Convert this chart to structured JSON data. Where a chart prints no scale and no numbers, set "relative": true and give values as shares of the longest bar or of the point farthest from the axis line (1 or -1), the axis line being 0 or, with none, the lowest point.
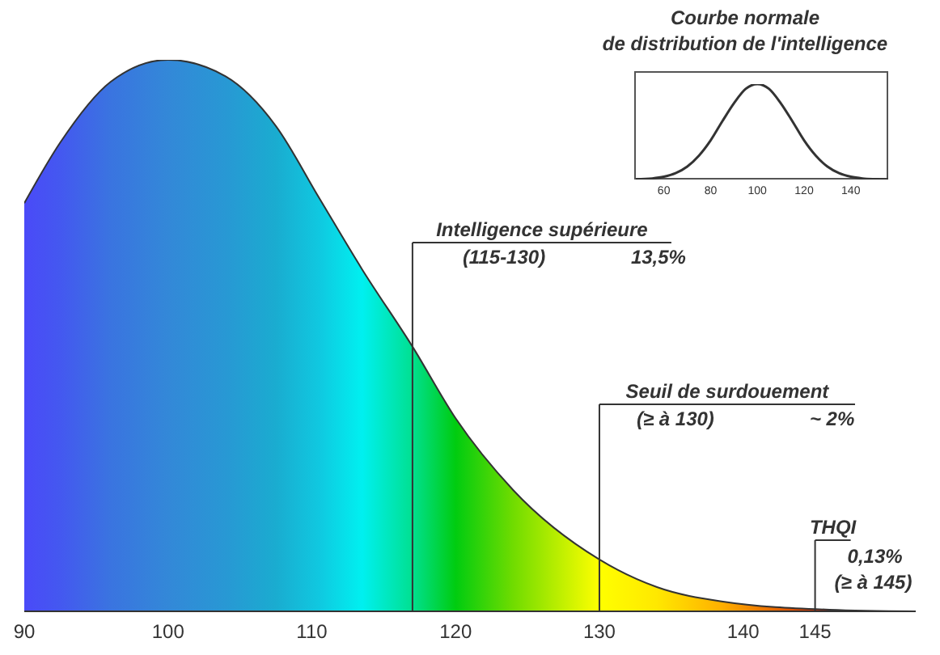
{
  "chart_data": [
    {
      "type": "area",
      "relative": true,
      "x": [
        90,
        92.5,
        96,
        100,
        104,
        107.5,
        110.5,
        113.5,
        117,
        120,
        124,
        130,
        134,
        138.5,
        146,
        152
      ],
      "values": [
        0.74,
        0.85,
        0.96,
        1,
        0.97,
        0.88,
        0.75,
        0.62,
        0.48,
        0.35,
        0.22,
        0.094,
        0.044,
        0.018,
        0.003,
        0
      ],
      "colors": [
        "#4a4af8",
        "#4458f0",
        "#3a74e0",
        "#3388d8",
        "#2898d4",
        "#1aacd0",
        "#10c8e0",
        "#00f0f0",
        "#00e090",
        "#00cc10",
        "#70dc00",
        "#ffff00",
        "#ffe800",
        "#ffb000",
        "#d02000",
        "#a00000"
      ],
      "xlim": [
        90,
        152
      ],
      "xticks": [
        90,
        100,
        110,
        120,
        130,
        140,
        145
      ],
      "ref_lines": [
        {
          "axis": "x",
          "value": 117,
          "label": "Intelligence supérieure"
        },
        {
          "axis": "x",
          "value": 130,
          "label": "Seuil de surdouement"
        },
        {
          "axis": "x",
          "value": 145,
          "label": "THQI"
        }
      ],
      "annotations": [
        "(115-130)",
        "13,5%",
        "(≥ à 130)",
        "~ 2%",
        "0,13%",
        "(≥ à 145)"
      ]
    },
    {
      "type": "line",
      "relative": true,
      "title": "Courbe normale",
      "subtitle": "de distribution de l'intelligence",
      "x": [
        48,
        55,
        60,
        65,
        70,
        75,
        80,
        85,
        90,
        95,
        100,
        105,
        110,
        115,
        120,
        125,
        130,
        135,
        140,
        145,
        150,
        156
      ],
      "values": [
        0.002,
        0.011,
        0.029,
        0.066,
        0.135,
        0.25,
        0.41,
        0.61,
        0.8,
        0.95,
        1,
        0.95,
        0.8,
        0.61,
        0.41,
        0.25,
        0.135,
        0.066,
        0.029,
        0.011,
        0.004,
        0.001
      ],
      "color": "#333333",
      "marker": "none",
      "xlim": [
        48,
        156
      ],
      "xticks": [
        60,
        80,
        100,
        120,
        140
      ]
    }
  ]
}
